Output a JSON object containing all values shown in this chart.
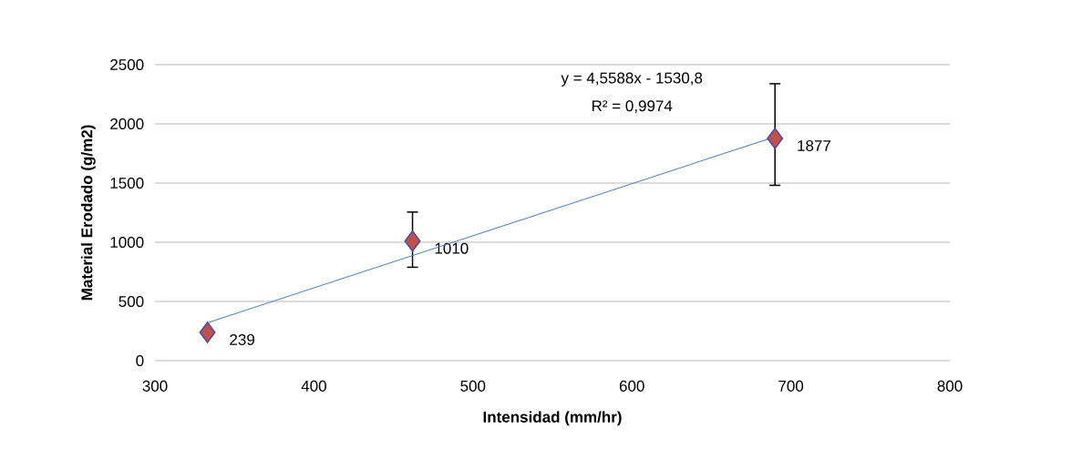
{
  "chart_data": {
    "type": "scatter",
    "xlabel": "Intensidad (mm/hr)",
    "ylabel": "Material Erodado (g/m2)",
    "xlim": [
      300,
      800
    ],
    "xticks": [
      300,
      400,
      500,
      600,
      700,
      800
    ],
    "ylim": [
      0,
      2500
    ],
    "yticks": [
      0,
      500,
      1000,
      1500,
      2000,
      2500
    ],
    "grid": "y",
    "series": [
      {
        "color": "#c0504d",
        "marker": "diamond",
        "x": [
          333,
          462,
          690
        ],
        "values": [
          239,
          1010,
          1877
        ],
        "errors": [
          null,
          [
            789,
            1255
          ],
          [
            1481,
            2339
          ]
        ],
        "value_labels": [
          "239",
          "1010",
          "1877"
        ]
      },
      {
        "type": "line",
        "color": "#4a7ebb",
        "x": [
          333,
          690
        ],
        "values": [
          320,
          1891
        ]
      }
    ],
    "annotations": [
      "y = 4,5588x - 1530,8",
      "R² = 0,9974"
    ]
  }
}
